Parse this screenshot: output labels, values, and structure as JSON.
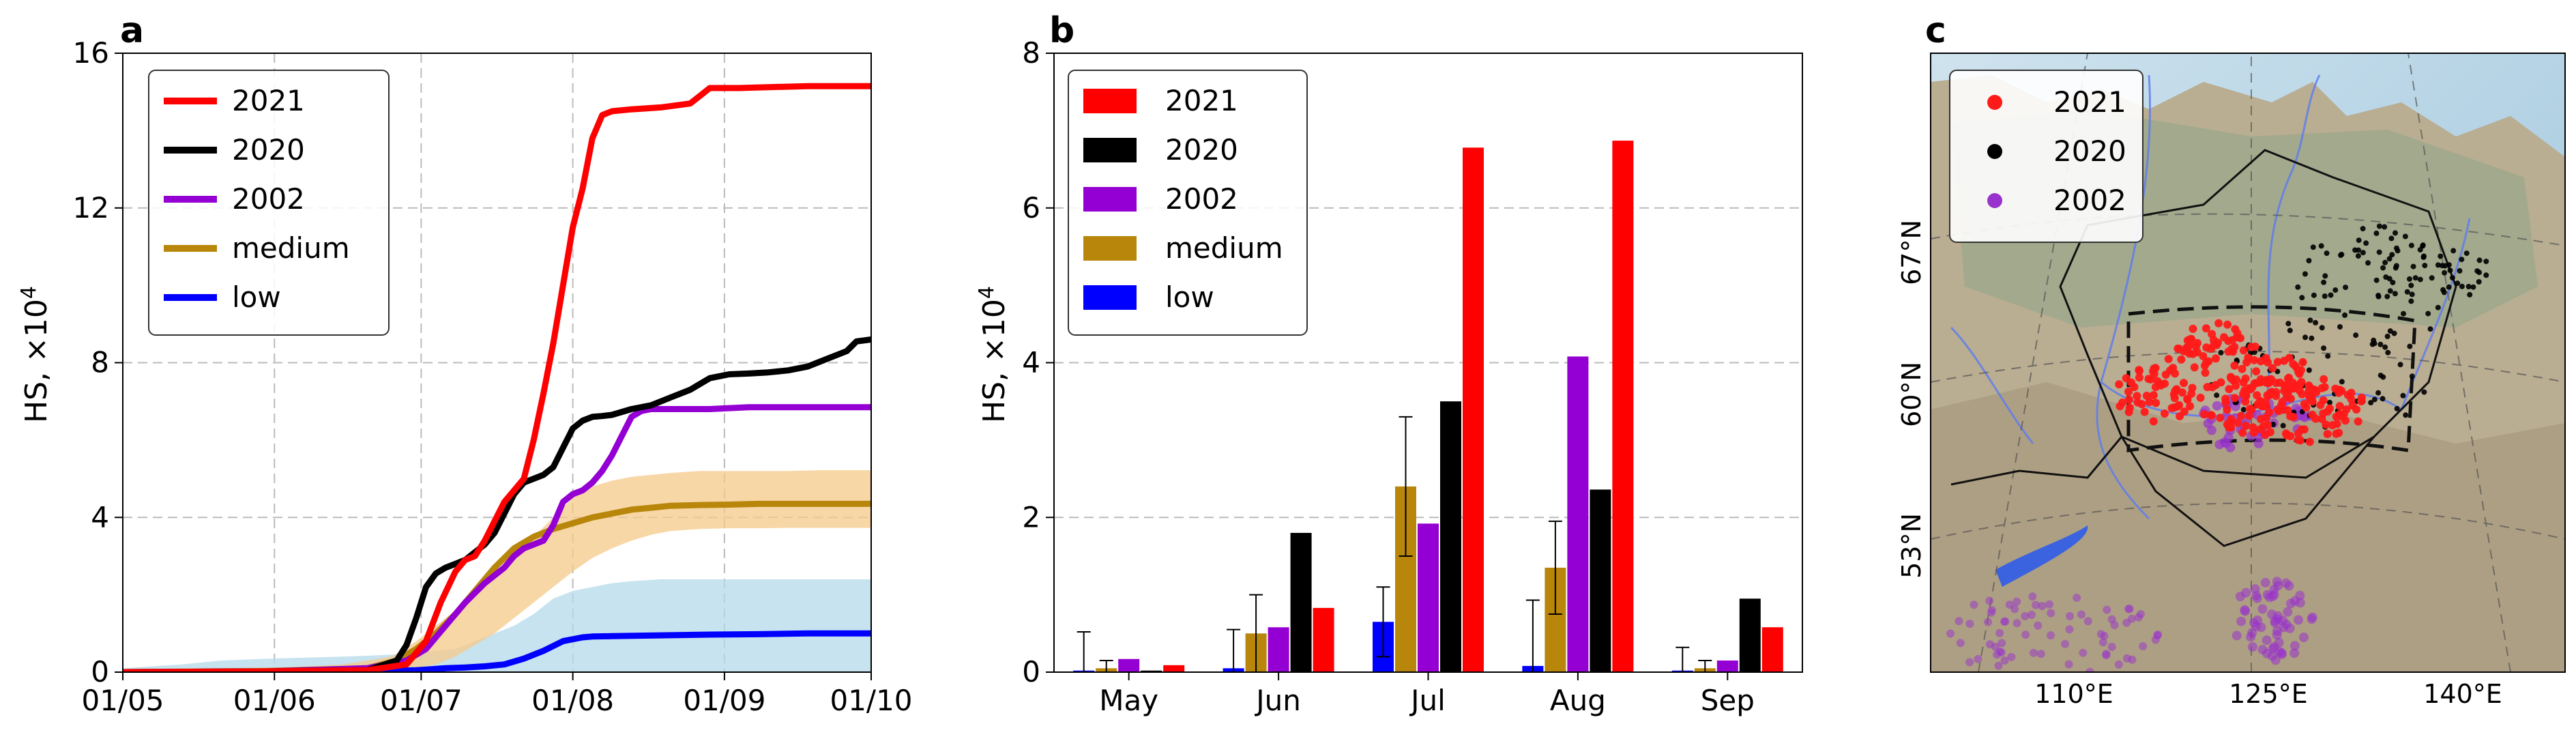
{
  "chart_data": [
    {
      "panel": "a",
      "type": "line",
      "title": "",
      "xlabel": "",
      "ylabel": "HS, ×10",
      "ylabel_exp": "4",
      "xlim": [
        0,
        153
      ],
      "ylim": [
        0,
        16
      ],
      "x_ticks": [
        {
          "pos": 0,
          "label": "01/05"
        },
        {
          "pos": 31,
          "label": "01/06"
        },
        {
          "pos": 61,
          "label": "01/07"
        },
        {
          "pos": 92,
          "label": "01/08"
        },
        {
          "pos": 123,
          "label": "01/09"
        },
        {
          "pos": 153,
          "label": "01/10"
        }
      ],
      "y_ticks": [
        0,
        4,
        8,
        12,
        16
      ],
      "grid": true,
      "legend_position": "top-left",
      "bands": [
        {
          "name": "medium range",
          "color": "#f5c98a",
          "x": [
            0,
            30,
            45,
            55,
            60,
            64,
            68,
            72,
            76,
            80,
            84,
            88,
            92,
            96,
            100,
            104,
            108,
            112,
            118,
            124,
            130,
            136,
            142,
            153
          ],
          "lower": [
            0,
            0,
            0,
            0.03,
            0.1,
            0.2,
            0.4,
            0.7,
            1.0,
            1.4,
            1.8,
            2.2,
            2.6,
            2.95,
            3.2,
            3.4,
            3.55,
            3.65,
            3.7,
            3.72,
            3.72,
            3.73,
            3.73,
            3.73
          ],
          "upper": [
            0.05,
            0.1,
            0.2,
            0.4,
            0.8,
            1.2,
            1.6,
            2.0,
            2.5,
            3.0,
            3.5,
            4.0,
            4.5,
            4.8,
            4.95,
            5.05,
            5.1,
            5.15,
            5.2,
            5.2,
            5.2,
            5.2,
            5.22,
            5.22
          ]
        },
        {
          "name": "low range",
          "color": "#b3d9ea",
          "x": [
            0,
            12,
            20,
            30,
            45,
            55,
            60,
            64,
            68,
            72,
            76,
            80,
            84,
            88,
            92,
            96,
            100,
            104,
            110,
            120,
            130,
            140,
            153
          ],
          "lower": [
            0,
            0,
            0,
            0,
            0,
            0,
            0,
            0,
            0,
            0,
            0,
            0,
            0,
            0,
            0,
            0,
            0,
            0,
            0,
            0,
            0,
            0,
            0
          ],
          "upper": [
            0.1,
            0.2,
            0.3,
            0.35,
            0.4,
            0.45,
            0.5,
            0.55,
            0.6,
            0.8,
            1.0,
            1.2,
            1.5,
            1.9,
            2.1,
            2.2,
            2.3,
            2.35,
            2.4,
            2.4,
            2.4,
            2.4,
            2.4
          ]
        }
      ],
      "series": [
        {
          "name": "2021",
          "color": "#ff0000",
          "x": [
            0,
            30,
            50,
            58,
            62,
            65,
            68,
            70,
            72,
            74,
            76,
            78,
            80,
            82,
            84,
            86,
            88,
            90,
            92,
            94,
            96,
            98,
            100,
            104,
            110,
            116,
            118,
            120,
            126,
            140,
            153
          ],
          "values": [
            0,
            0.02,
            0.05,
            0.2,
            0.8,
            1.8,
            2.6,
            2.9,
            3.0,
            3.4,
            3.9,
            4.4,
            4.7,
            5.0,
            6.0,
            7.2,
            8.5,
            10.0,
            11.5,
            12.5,
            13.8,
            14.4,
            14.5,
            14.55,
            14.6,
            14.7,
            14.9,
            15.1,
            15.1,
            15.15,
            15.15
          ]
        },
        {
          "name": "2020",
          "color": "#000000",
          "x": [
            0,
            30,
            50,
            56,
            58,
            60,
            62,
            64,
            66,
            68,
            70,
            72,
            74,
            76,
            78,
            80,
            82,
            84,
            86,
            88,
            90,
            92,
            94,
            96,
            98,
            100,
            104,
            108,
            112,
            116,
            120,
            124,
            128,
            132,
            136,
            140,
            144,
            148,
            150,
            153
          ],
          "values": [
            0,
            0.02,
            0.05,
            0.3,
            0.7,
            1.4,
            2.2,
            2.55,
            2.7,
            2.8,
            2.9,
            3.1,
            3.3,
            3.6,
            4.1,
            4.6,
            4.9,
            5.0,
            5.1,
            5.3,
            5.8,
            6.3,
            6.5,
            6.6,
            6.62,
            6.65,
            6.8,
            6.9,
            7.1,
            7.3,
            7.6,
            7.7,
            7.72,
            7.75,
            7.8,
            7.9,
            8.1,
            8.3,
            8.55,
            8.6
          ]
        },
        {
          "name": "2002",
          "color": "#9400d3",
          "x": [
            0,
            30,
            50,
            58,
            62,
            66,
            70,
            74,
            78,
            80,
            82,
            84,
            86,
            88,
            90,
            92,
            94,
            96,
            98,
            100,
            102,
            104,
            106,
            108,
            110,
            112,
            120,
            128,
            136,
            153
          ],
          "values": [
            0,
            0.02,
            0.1,
            0.3,
            0.6,
            1.2,
            1.8,
            2.3,
            2.7,
            3.0,
            3.2,
            3.3,
            3.4,
            3.8,
            4.4,
            4.6,
            4.7,
            4.9,
            5.2,
            5.6,
            6.1,
            6.6,
            6.75,
            6.8,
            6.8,
            6.8,
            6.8,
            6.85,
            6.85,
            6.85
          ]
        },
        {
          "name": "medium",
          "color": "#b8860b",
          "x": [
            0,
            30,
            50,
            56,
            60,
            64,
            68,
            72,
            76,
            80,
            84,
            88,
            92,
            96,
            100,
            104,
            108,
            112,
            118,
            124,
            130,
            140,
            153
          ],
          "values": [
            0,
            0.03,
            0.1,
            0.3,
            0.6,
            1.0,
            1.5,
            2.1,
            2.7,
            3.2,
            3.5,
            3.7,
            3.85,
            4.0,
            4.1,
            4.2,
            4.25,
            4.3,
            4.32,
            4.33,
            4.35,
            4.35,
            4.35
          ]
        },
        {
          "name": "low",
          "color": "#0000ff",
          "x": [
            0,
            30,
            50,
            60,
            66,
            70,
            74,
            78,
            82,
            86,
            90,
            94,
            96,
            100,
            110,
            120,
            130,
            140,
            153
          ],
          "values": [
            0,
            0,
            0.02,
            0.05,
            0.1,
            0.12,
            0.15,
            0.2,
            0.35,
            0.55,
            0.8,
            0.9,
            0.92,
            0.93,
            0.95,
            0.97,
            0.98,
            1.0,
            1.0
          ]
        }
      ]
    },
    {
      "panel": "b",
      "type": "bar",
      "title": "",
      "xlabel": "",
      "ylabel": "HS, ×10",
      "ylabel_exp": "4",
      "ylim": [
        0,
        8
      ],
      "y_ticks": [
        0,
        2,
        4,
        6,
        8
      ],
      "grid": true,
      "legend_position": "top-left",
      "categories": [
        "May",
        "Jun",
        "Jul",
        "Aug",
        "Sep"
      ],
      "series": [
        {
          "name": "low",
          "color": "#0000ff",
          "values": [
            0.02,
            0.05,
            0.65,
            0.08,
            0.02
          ],
          "err": [
            0.5,
            0.5,
            0.45,
            0.85,
            0.3
          ]
        },
        {
          "name": "medium",
          "color": "#b8860b",
          "values": [
            0.05,
            0.5,
            2.4,
            1.35,
            0.05
          ],
          "err": [
            0.1,
            0.5,
            0.9,
            0.6,
            0.1
          ]
        },
        {
          "name": "2002",
          "color": "#9400d3",
          "values": [
            0.17,
            0.58,
            1.92,
            4.08,
            0.15
          ],
          "err": null
        },
        {
          "name": "2020",
          "color": "#000000",
          "values": [
            0.02,
            1.8,
            3.5,
            2.36,
            0.95
          ],
          "err": null
        },
        {
          "name": "2021",
          "color": "#ff0000",
          "values": [
            0.09,
            0.83,
            6.78,
            6.87,
            0.58
          ],
          "err": null
        }
      ],
      "legend_order": [
        "2021",
        "2020",
        "2002",
        "medium",
        "low"
      ]
    },
    {
      "panel": "c",
      "type": "scatter",
      "title": "",
      "subtype": "map",
      "lat_labels": [
        "67°N",
        "60°N",
        "53°N"
      ],
      "lon_labels": [
        "110°E",
        "125°E",
        "140°E"
      ],
      "legend_position": "top-left",
      "series": [
        {
          "name": "2021",
          "color": "#ff1a1a"
        },
        {
          "name": "2020",
          "color": "#000000"
        },
        {
          "name": "2002",
          "color": "#9932cc"
        }
      ]
    }
  ],
  "panel_labels": [
    "a",
    "b",
    "c"
  ]
}
